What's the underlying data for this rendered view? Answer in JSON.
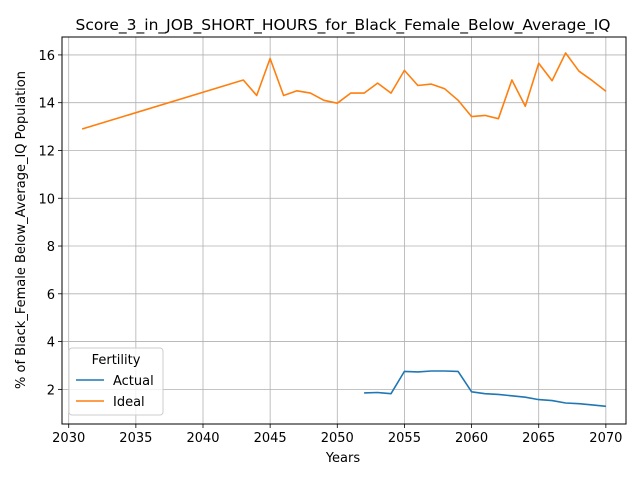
{
  "chart_data": {
    "type": "line",
    "title": "Score_3_in_JOB_SHORT_HOURS_for_Black_Female_Below_Average_IQ",
    "xlabel": "Years",
    "ylabel": "% of Black_Female Below_Average_IQ Population",
    "xlim": [
      2029.5,
      2071.5
    ],
    "ylim": [
      0.55,
      16.75
    ],
    "xticks": [
      2030,
      2035,
      2040,
      2045,
      2050,
      2055,
      2060,
      2065,
      2070
    ],
    "yticks": [
      2,
      4,
      6,
      8,
      10,
      12,
      14,
      16
    ],
    "grid": true,
    "legend": {
      "title": "Fertility",
      "placement": "lower-left"
    },
    "series": [
      {
        "name": "Actual",
        "color": "#1f77b4",
        "x": [
          2052,
          2053,
          2054,
          2055,
          2056,
          2057,
          2058,
          2059,
          2060,
          2061,
          2062,
          2063,
          2064,
          2065,
          2066,
          2067,
          2068,
          2069,
          2070
        ],
        "y": [
          1.85,
          1.87,
          1.82,
          2.75,
          2.73,
          2.77,
          2.77,
          2.75,
          1.9,
          1.82,
          1.79,
          1.73,
          1.67,
          1.57,
          1.53,
          1.43,
          1.4,
          1.35,
          1.29
        ]
      },
      {
        "name": "Ideal",
        "color": "#ff7f0e",
        "x": [
          2031,
          2043,
          2044,
          2045,
          2046,
          2047,
          2048,
          2049,
          2050,
          2051,
          2052,
          2053,
          2054,
          2055,
          2056,
          2057,
          2058,
          2059,
          2060,
          2061,
          2062,
          2063,
          2064,
          2065,
          2066,
          2067,
          2068,
          2069,
          2070
        ],
        "y": [
          12.9,
          14.95,
          14.3,
          15.85,
          14.3,
          14.5,
          14.4,
          14.1,
          13.98,
          14.4,
          14.4,
          14.82,
          14.4,
          15.35,
          14.72,
          14.78,
          14.58,
          14.1,
          13.42,
          13.47,
          13.33,
          14.95,
          13.85,
          15.65,
          14.92,
          16.08,
          15.32,
          14.92,
          14.48
        ]
      }
    ]
  }
}
